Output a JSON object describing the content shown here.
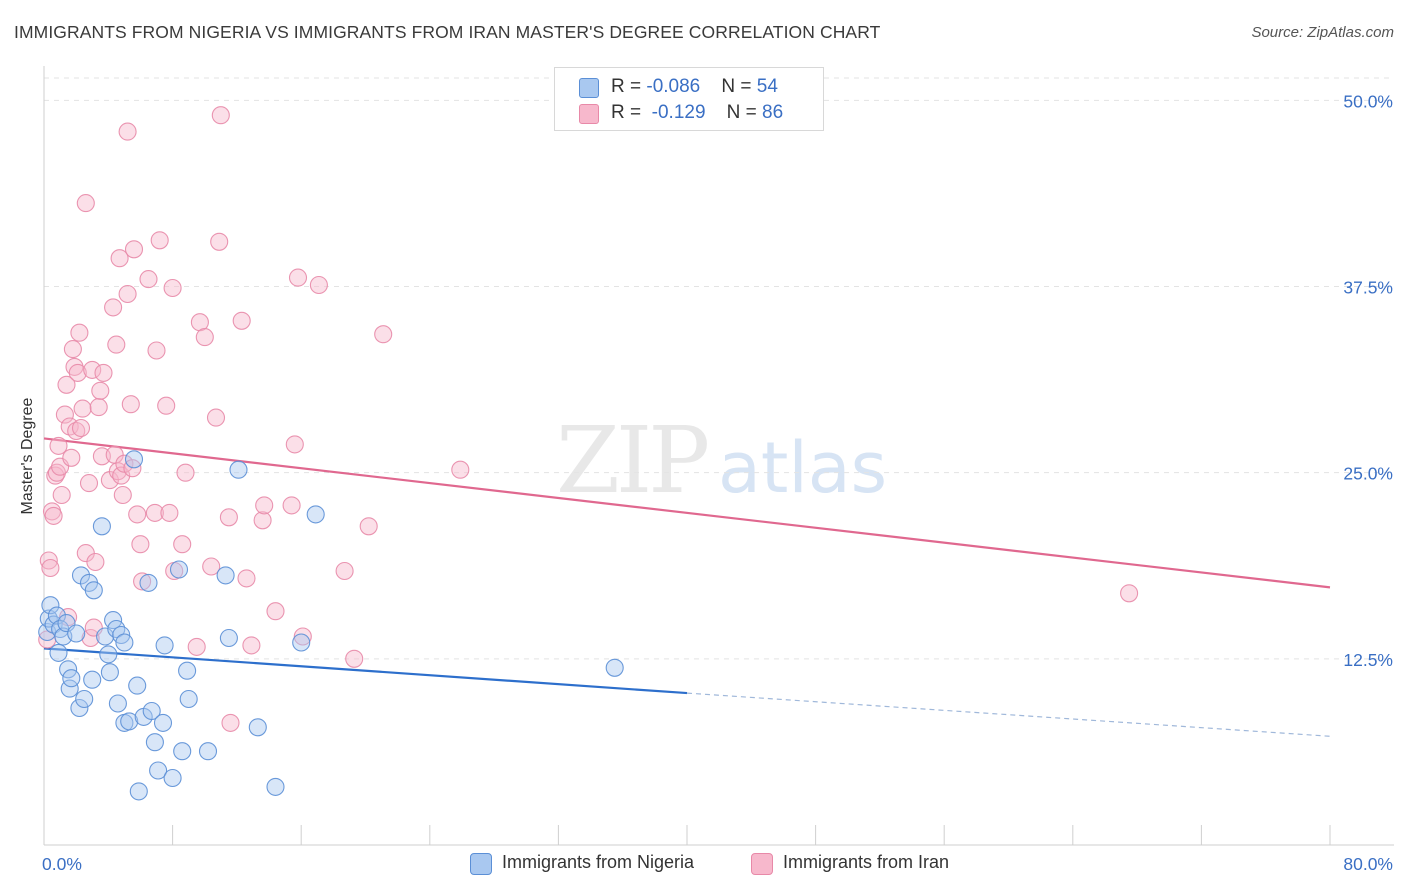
{
  "title": "IMMIGRANTS FROM NIGERIA VS IMMIGRANTS FROM IRAN MASTER'S DEGREE CORRELATION CHART",
  "source": "Source: ZipAtlas.com",
  "watermark": {
    "zip": "ZIP",
    "atlas": "atlas"
  },
  "legend_top": {
    "rows": [
      {
        "r_label": "R = ",
        "r_value": "-0.086",
        "n_label": "N = ",
        "n_value": "54"
      },
      {
        "r_label": "R = ",
        "r_value": " -0.129",
        "n_label": "N = ",
        "n_value": "86"
      }
    ]
  },
  "colors": {
    "nigeria_fill": "#a9c8f0",
    "nigeria_stroke": "#5b8fd6",
    "nigeria_line": "#2d6fcc",
    "iran_fill": "#f7b8cc",
    "iran_stroke": "#e889a8",
    "iran_line": "#e0688f",
    "axis_text": "#3a6fc4",
    "grid": "#e3e3e3"
  },
  "chart_data": {
    "type": "scatter",
    "title": "IMMIGRANTS FROM NIGERIA VS IMMIGRANTS FROM IRAN MASTER'S DEGREE CORRELATION CHART",
    "xlabel": "",
    "ylabel": "Master's Degree",
    "xlim": [
      0,
      80
    ],
    "ylim": [
      0,
      51.5
    ],
    "x_tick_labels": [
      "0.0%",
      "80.0%"
    ],
    "y_ticks": [
      12.5,
      25.0,
      37.5,
      50.0
    ],
    "y_tick_labels": [
      "12.5%",
      "25.0%",
      "37.5%",
      "50.0%"
    ],
    "grid": true,
    "legend_position": "bottom",
    "series": [
      {
        "name": "Immigrants from Nigeria",
        "r": -0.086,
        "n": 54,
        "trend": {
          "x0": 0,
          "y0": 13.2,
          "x1": 40,
          "y1": 10.2,
          "dash_to_x": 80,
          "dash_to_y": 7.3
        },
        "points": [
          [
            0.2,
            14.3
          ],
          [
            0.3,
            15.2
          ],
          [
            0.4,
            16.1
          ],
          [
            0.6,
            14.8
          ],
          [
            0.8,
            15.4
          ],
          [
            1.0,
            14.5
          ],
          [
            1.2,
            14.0
          ],
          [
            1.4,
            14.9
          ],
          [
            1.5,
            11.8
          ],
          [
            1.6,
            10.5
          ],
          [
            1.7,
            11.2
          ],
          [
            2.0,
            14.2
          ],
          [
            2.2,
            9.2
          ],
          [
            2.5,
            9.8
          ],
          [
            2.3,
            18.1
          ],
          [
            2.8,
            17.6
          ],
          [
            3.1,
            17.1
          ],
          [
            3.0,
            11.1
          ],
          [
            3.6,
            21.4
          ],
          [
            3.8,
            14.0
          ],
          [
            4.0,
            12.8
          ],
          [
            4.1,
            11.6
          ],
          [
            4.3,
            15.1
          ],
          [
            4.5,
            14.5
          ],
          [
            4.6,
            9.5
          ],
          [
            4.8,
            14.1
          ],
          [
            5.0,
            8.2
          ],
          [
            5.0,
            13.6
          ],
          [
            5.3,
            8.3
          ],
          [
            5.6,
            25.9
          ],
          [
            5.8,
            10.7
          ],
          [
            5.9,
            3.6
          ],
          [
            6.2,
            8.6
          ],
          [
            6.5,
            17.6
          ],
          [
            6.7,
            9.0
          ],
          [
            6.9,
            6.9
          ],
          [
            7.1,
            5.0
          ],
          [
            7.4,
            8.2
          ],
          [
            7.5,
            13.4
          ],
          [
            8.0,
            4.5
          ],
          [
            8.4,
            18.5
          ],
          [
            8.6,
            6.3
          ],
          [
            8.9,
            11.7
          ],
          [
            9.0,
            9.8
          ],
          [
            10.2,
            6.3
          ],
          [
            11.3,
            18.1
          ],
          [
            11.5,
            13.9
          ],
          [
            12.1,
            25.2
          ],
          [
            13.3,
            7.9
          ],
          [
            14.4,
            3.9
          ],
          [
            16.0,
            13.6
          ],
          [
            16.9,
            22.2
          ],
          [
            35.5,
            11.9
          ],
          [
            0.9,
            12.9
          ]
        ]
      },
      {
        "name": "Immigrants from Iran",
        "r": -0.129,
        "n": 86,
        "trend": {
          "x0": 0,
          "y0": 27.3,
          "x1": 80,
          "y1": 17.3
        },
        "points": [
          [
            0.2,
            13.8
          ],
          [
            0.3,
            19.1
          ],
          [
            0.4,
            18.6
          ],
          [
            0.5,
            22.4
          ],
          [
            0.6,
            22.1
          ],
          [
            0.7,
            24.8
          ],
          [
            0.8,
            25.0
          ],
          [
            0.9,
            26.8
          ],
          [
            1.0,
            25.4
          ],
          [
            1.1,
            23.5
          ],
          [
            1.3,
            28.9
          ],
          [
            1.4,
            30.9
          ],
          [
            1.5,
            15.3
          ],
          [
            1.6,
            28.1
          ],
          [
            1.7,
            26.0
          ],
          [
            1.8,
            33.3
          ],
          [
            1.9,
            32.1
          ],
          [
            2.0,
            27.8
          ],
          [
            2.1,
            31.7
          ],
          [
            2.2,
            34.4
          ],
          [
            2.3,
            28.0
          ],
          [
            2.4,
            29.3
          ],
          [
            2.6,
            19.6
          ],
          [
            2.6,
            43.1
          ],
          [
            2.8,
            24.3
          ],
          [
            2.9,
            13.9
          ],
          [
            3.0,
            31.9
          ],
          [
            3.1,
            14.6
          ],
          [
            3.2,
            19.0
          ],
          [
            3.4,
            29.4
          ],
          [
            3.5,
            30.5
          ],
          [
            3.7,
            31.7
          ],
          [
            3.6,
            26.1
          ],
          [
            4.1,
            24.5
          ],
          [
            4.3,
            36.1
          ],
          [
            4.4,
            26.2
          ],
          [
            4.5,
            33.6
          ],
          [
            4.6,
            25.1
          ],
          [
            4.7,
            39.4
          ],
          [
            4.8,
            24.8
          ],
          [
            4.9,
            23.5
          ],
          [
            5.0,
            25.6
          ],
          [
            5.2,
            47.9
          ],
          [
            5.2,
            37.0
          ],
          [
            5.4,
            29.6
          ],
          [
            5.5,
            25.3
          ],
          [
            5.6,
            40.0
          ],
          [
            5.8,
            22.2
          ],
          [
            6.0,
            20.2
          ],
          [
            6.1,
            17.7
          ],
          [
            6.5,
            38.0
          ],
          [
            6.9,
            22.3
          ],
          [
            7.0,
            33.2
          ],
          [
            7.2,
            40.6
          ],
          [
            7.6,
            29.5
          ],
          [
            7.8,
            22.3
          ],
          [
            8.0,
            37.4
          ],
          [
            8.1,
            18.4
          ],
          [
            8.6,
            20.2
          ],
          [
            8.8,
            25.0
          ],
          [
            9.5,
            13.3
          ],
          [
            9.7,
            35.1
          ],
          [
            10.0,
            34.1
          ],
          [
            10.4,
            18.7
          ],
          [
            10.7,
            28.7
          ],
          [
            10.9,
            40.5
          ],
          [
            11.0,
            49.0
          ],
          [
            11.5,
            22.0
          ],
          [
            11.6,
            8.2
          ],
          [
            12.3,
            35.2
          ],
          [
            12.6,
            17.9
          ],
          [
            12.9,
            13.4
          ],
          [
            13.6,
            21.8
          ],
          [
            13.7,
            22.8
          ],
          [
            14.4,
            15.7
          ],
          [
            15.4,
            22.8
          ],
          [
            15.6,
            26.9
          ],
          [
            15.8,
            38.1
          ],
          [
            16.1,
            14.0
          ],
          [
            17.1,
            37.6
          ],
          [
            18.7,
            18.4
          ],
          [
            19.3,
            12.5
          ],
          [
            20.2,
            21.4
          ],
          [
            21.1,
            34.3
          ],
          [
            25.9,
            25.2
          ],
          [
            67.5,
            16.9
          ]
        ]
      }
    ]
  }
}
